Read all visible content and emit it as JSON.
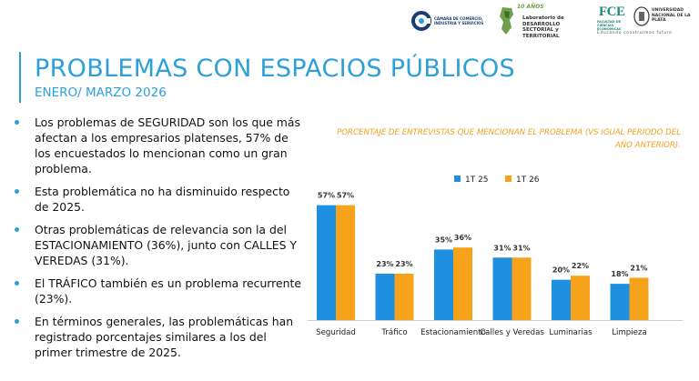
{
  "header": {
    "logos": {
      "ccis_text": "CÁMARA DE COMERCIO, INDUSTRIA Y SERVICIOS",
      "lab_years": "10 AÑOS",
      "lab_text": "Laboratorio de DESARROLLO SECTORIAL y TERRITORIAL",
      "fce_mark": "FCE",
      "fce_sub": "FACULTAD DE CIENCIAS ECONÓMICAS",
      "unlp_text": "UNIVERSIDAD NACIONAL DE LA PLATA",
      "tagline": "Educando construimos futuro"
    }
  },
  "slide": {
    "title": "PROBLEMAS CON ESPACIOS PÚBLICOS",
    "subtitle": "ENERO/ MARZO 2026"
  },
  "bullets": [
    "Los problemas de SEGURIDAD son los que más afectan a los empresarios platenses, 57% de los encuestados lo mencionan como un gran problema.",
    "Esta problemática no ha disminuido respecto de 2025.",
    "Otras problemáticas de relevancia son la del ESTACIONAMIENTO (36%), junto con CALLES Y VEREDAS (31%).",
    "El  TRÁFICO también es un problema recurrente (23%).",
    "En términos generales, las problemáticas han registrado porcentajes similares a los del primer trimestre de 2025."
  ],
  "colors": {
    "accent": "#2ea0d8",
    "series_1": "#1f8fe0",
    "series_2": "#f7a21b",
    "chart_title": "#f0a020"
  },
  "chart_data": {
    "type": "bar",
    "title": "PORCENTAJE DE ENTREVISTAS QUE MENCIONAN EL PROBLEMA (VS IGUAL PERIODO DEL AÑO ANTERIOR).",
    "categories": [
      "Seguridad",
      "Tráfico",
      "Estacionamiento",
      "Calles y Veredas",
      "Luminarias",
      "Limpieza"
    ],
    "series": [
      {
        "name": "1T 25",
        "values": [
          57,
          23,
          35,
          31,
          20,
          18
        ]
      },
      {
        "name": "1T 26",
        "values": [
          57,
          23,
          36,
          31,
          22,
          21
        ]
      }
    ],
    "value_suffix": "%",
    "ylim": [
      0,
      60
    ],
    "legend_position": "top-center",
    "grid": false
  }
}
